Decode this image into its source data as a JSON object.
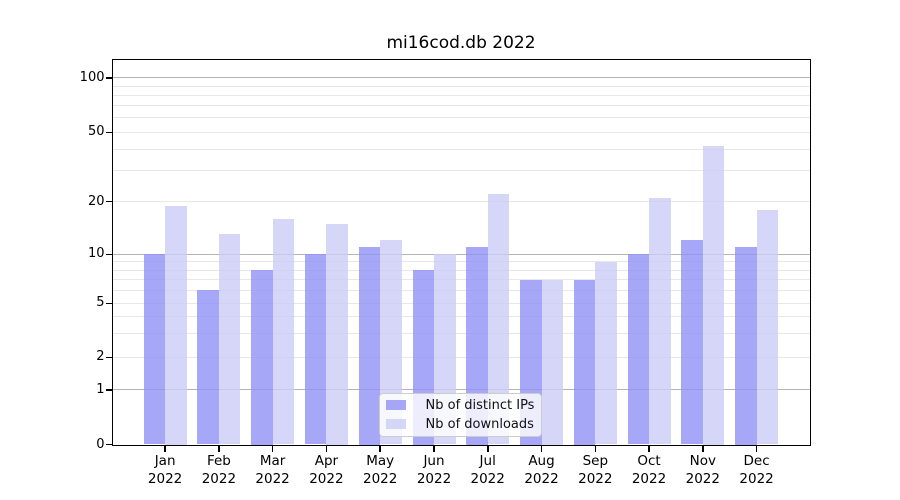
{
  "chart_data": {
    "type": "bar",
    "title": "mi16cod.db 2022",
    "categories": [
      "Jan 2022",
      "Feb 2022",
      "Mar 2022",
      "Apr 2022",
      "May 2022",
      "Jun 2022",
      "Jul 2022",
      "Aug 2022",
      "Sep 2022",
      "Oct 2022",
      "Nov 2022",
      "Dec 2022"
    ],
    "series": [
      {
        "name": "Nb of distinct IPs",
        "color": "#9191f5",
        "values": [
          10,
          6,
          8,
          10,
          11,
          8,
          11,
          7,
          7,
          10,
          12,
          11
        ]
      },
      {
        "name": "Nb of downloads",
        "color": "#ccccf6",
        "values": [
          19,
          13,
          16,
          15,
          12,
          10,
          22,
          7,
          9,
          21,
          42,
          18
        ]
      }
    ],
    "xlabel": "",
    "ylabel": "",
    "yscale": "symlog",
    "ylim": [
      0,
      127
    ],
    "yticks": [
      0,
      1,
      2,
      5,
      10,
      20,
      50,
      100
    ],
    "minor_gridline_values": [
      2,
      3,
      4,
      5,
      6,
      7,
      8,
      9,
      20,
      30,
      40,
      50,
      60,
      70,
      80,
      90
    ],
    "major_gridline_values": [
      1,
      10,
      100
    ],
    "grid": "both",
    "legend_position": "lower center",
    "bar_alpha": 0.8
  },
  "colors": {
    "background": "#ffffff",
    "grid_major": "#b4b4b4",
    "grid_minor": "#e7e7e7",
    "axis": "#000000",
    "text": "#000000",
    "legend_border": "#cccccc"
  }
}
